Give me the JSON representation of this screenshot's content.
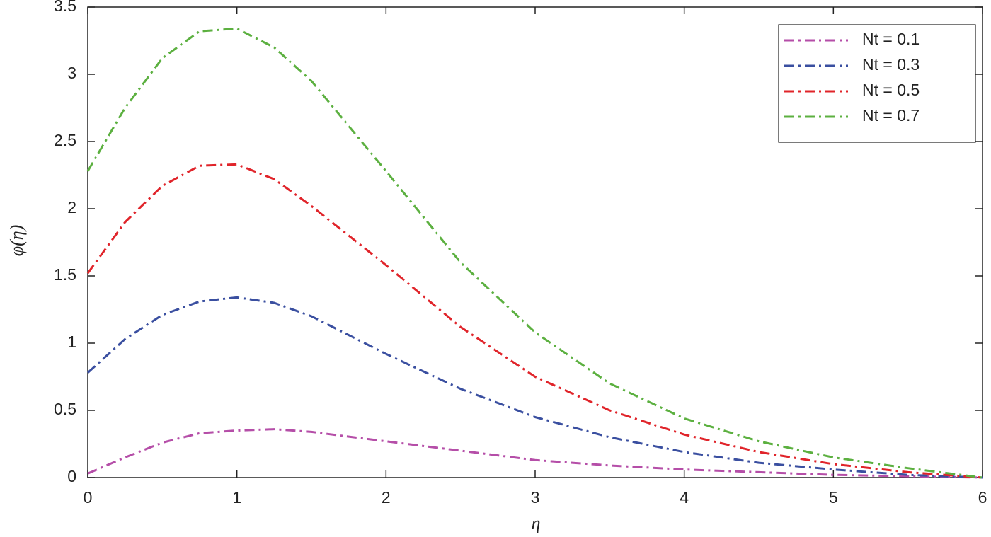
{
  "chart_data": {
    "type": "line",
    "x_label": "η",
    "y_label": "φ(η)",
    "x": [
      0,
      0.25,
      0.5,
      0.75,
      1,
      1.25,
      1.5,
      2,
      2.5,
      3,
      3.5,
      4,
      4.5,
      5,
      5.5,
      6
    ],
    "series": [
      {
        "name": "Nt = 0.1",
        "color": "#b54ea8",
        "values": [
          0.03,
          0.15,
          0.26,
          0.33,
          0.35,
          0.36,
          0.34,
          0.27,
          0.2,
          0.13,
          0.09,
          0.06,
          0.04,
          0.02,
          0.01,
          0
        ]
      },
      {
        "name": "Nt = 0.3",
        "color": "#3a4fa0",
        "values": [
          0.78,
          1.03,
          1.21,
          1.31,
          1.34,
          1.3,
          1.2,
          0.92,
          0.66,
          0.45,
          0.3,
          0.19,
          0.11,
          0.06,
          0.02,
          0
        ]
      },
      {
        "name": "Nt = 0.5",
        "color": "#e0242a",
        "values": [
          1.52,
          1.9,
          2.17,
          2.32,
          2.33,
          2.22,
          2.02,
          1.58,
          1.12,
          0.75,
          0.5,
          0.32,
          0.19,
          0.1,
          0.04,
          0
        ]
      },
      {
        "name": "Nt = 0.7",
        "color": "#5cb040",
        "values": [
          2.28,
          2.75,
          3.12,
          3.32,
          3.34,
          3.2,
          2.95,
          2.28,
          1.6,
          1.08,
          0.7,
          0.44,
          0.27,
          0.15,
          0.07,
          0
        ]
      }
    ],
    "xlim": [
      0,
      6
    ],
    "xticks": [
      0,
      1,
      2,
      3,
      4,
      5,
      6
    ],
    "ylim": [
      0,
      3.5
    ],
    "yticks": [
      0,
      0.5,
      1,
      1.5,
      2,
      2.5,
      3,
      3.5
    ],
    "legend": "top-right",
    "line_style": "dash-dot"
  }
}
